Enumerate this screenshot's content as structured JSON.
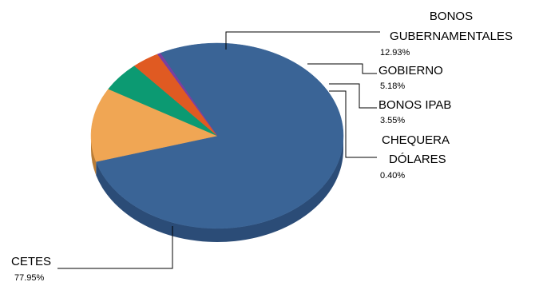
{
  "chart_data": {
    "type": "pie",
    "title": "",
    "slices": [
      {
        "label": "CETES",
        "display_name": [
          "CETES"
        ],
        "value": 77.95,
        "value_label": "77.95%",
        "color": "#3A6496",
        "side_color": "#2B4C77"
      },
      {
        "label": "BONOS GUBERNAMENTALES",
        "display_name": [
          "BONOS",
          "GUBERNAMENTALES"
        ],
        "value": 12.93,
        "value_label": "12.93%",
        "color": "#F0A654",
        "side_color": "#B97C36"
      },
      {
        "label": "GOBIERNO",
        "display_name": [
          "GOBIERNO"
        ],
        "value": 5.18,
        "value_label": "5.18%",
        "color": "#0C9A72",
        "side_color": "#087353"
      },
      {
        "label": "BONOS IPAB",
        "display_name": [
          "BONOS IPAB"
        ],
        "value": 3.55,
        "value_label": "3.55%",
        "color": "#E05A22",
        "side_color": "#A84319"
      },
      {
        "label": "CHEQUERA DÓLARES",
        "display_name": [
          "CHEQUERA",
          "DÓLARES"
        ],
        "value": 0.4,
        "value_label": "0.40%",
        "color": "#7B3FA0",
        "side_color": "#5A2E76"
      }
    ],
    "legend": "none",
    "style": "3d-pie"
  }
}
